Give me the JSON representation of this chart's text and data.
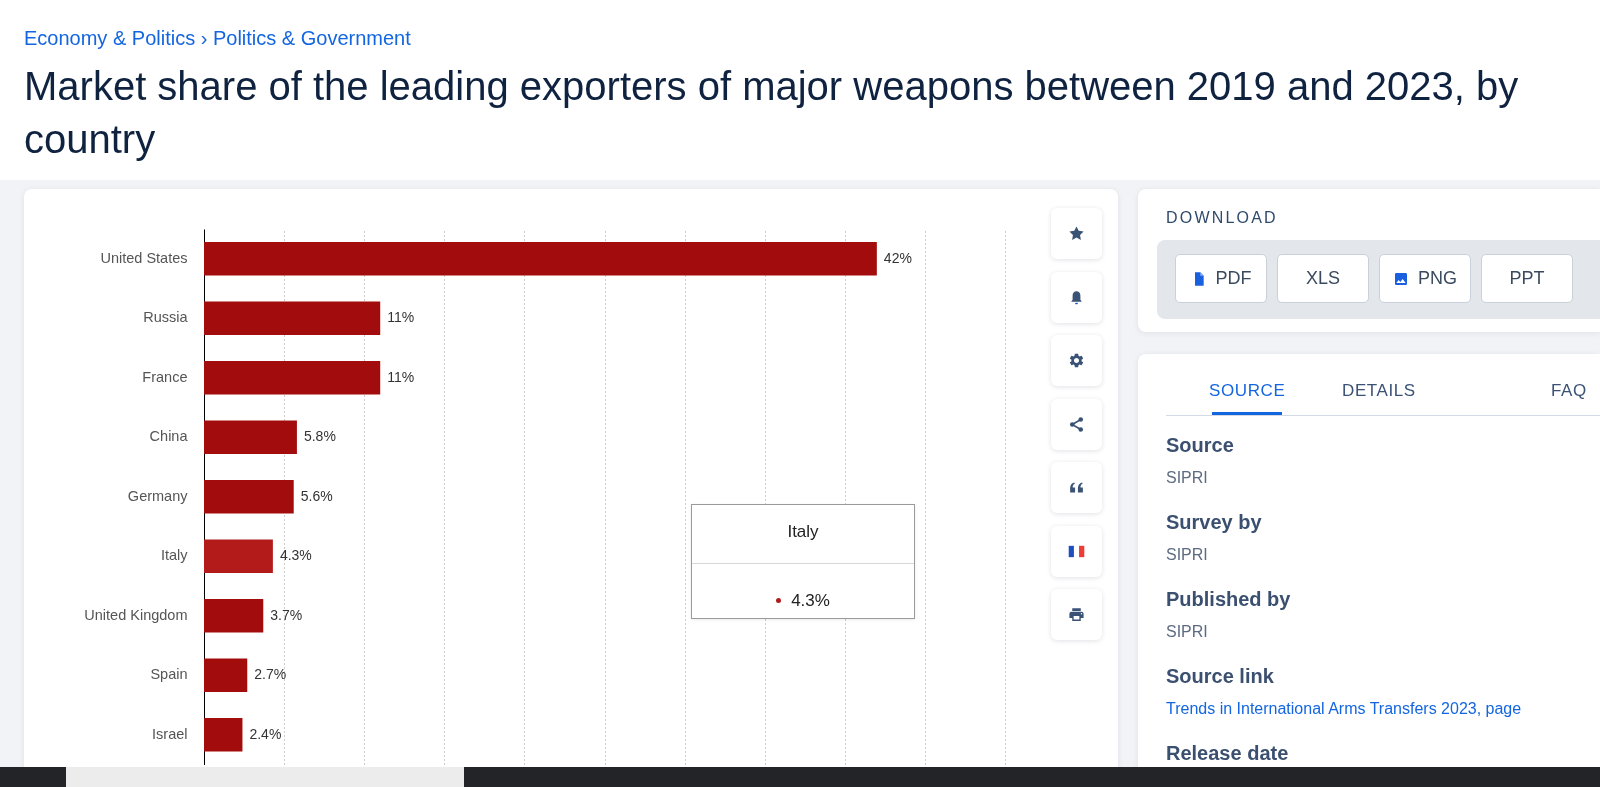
{
  "chart_data": [
    {
      "type": "bar",
      "orientation": "horizontal",
      "title": "Market share of the leading exporters of major weapons between 2019 and 2023, by country",
      "subtitle": "Economy & Politics › Politics & Government",
      "categories": [
        "United States",
        "Russia",
        "France",
        "China",
        "Germany",
        "Italy",
        "United Kingdom",
        "Spain",
        "Israel"
      ],
      "values": [
        42,
        11,
        11,
        5.8,
        5.6,
        4.3,
        3.7,
        2.7,
        2.4
      ],
      "value_labels": [
        "42%",
        "11%",
        "11%",
        "5.8%",
        "5.6%",
        "4.3%",
        "3.7%",
        "2.7%",
        "2.4%"
      ],
      "colors": [
        "#a30c0c",
        "#a30c0c",
        "#a30c0c",
        "#a30c0c",
        "#a30c0c",
        "#b31b1b",
        "#a30c0c",
        "#a30c0c",
        "#a30c0c"
      ],
      "xlim": [
        0,
        50
      ],
      "xticks": [
        {
          "value": 0,
          "label": null
        },
        {
          "value": 5,
          "label": null
        },
        {
          "value": 10,
          "label": null
        },
        {
          "value": 15,
          "label": null
        },
        {
          "value": 20,
          "label": null
        },
        {
          "value": 25,
          "label": null
        },
        {
          "value": 30,
          "label": null
        },
        {
          "value": 35,
          "label": null
        },
        {
          "value": 40,
          "label": null
        },
        {
          "value": 45,
          "label": null
        },
        {
          "value": 50,
          "label": null
        }
      ],
      "grid": "x",
      "tick_labels": "y",
      "annotations": [
        "Italy",
        "4.3%"
      ]
    },
    {
      "type": "other",
      "title": "DOWNLOAD",
      "annotations": [
        "PDF",
        "XLS",
        "PNG",
        "PPT"
      ]
    },
    {
      "type": "other",
      "annotations": [
        "SOURCE",
        "DETAILS",
        "FAQ",
        "Source",
        "SIPRI",
        "Survey by",
        "SIPRI",
        "Published by",
        "SIPRI",
        "Source link",
        "Trends in International Arms Transfers 2023, page",
        "Release date"
      ]
    }
  ]
}
